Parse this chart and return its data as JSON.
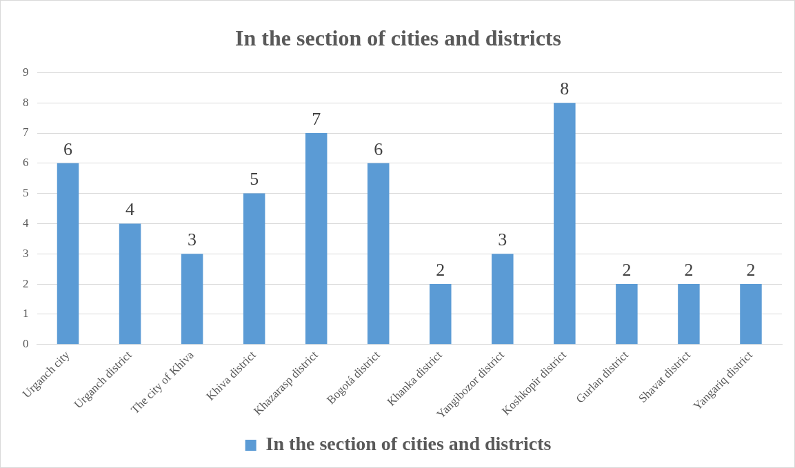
{
  "chart_data": {
    "type": "bar",
    "title": "In the section of cities and districts",
    "categories": [
      "Urganch city",
      "Urganch district",
      "The city of Khiva",
      "Khiva district",
      "Khazarasp district",
      "Bogotá district",
      "Khanka district",
      "Yangibozor district",
      "Koshkopir district",
      "Gurlan district",
      "Shavat district",
      "Yangariq district"
    ],
    "series": [
      {
        "name": "In the section of cities and districts",
        "color": "#5b9bd5",
        "values": [
          6,
          4,
          3,
          5,
          7,
          6,
          2,
          3,
          8,
          2,
          2,
          2
        ]
      }
    ],
    "ylim": [
      0,
      9
    ],
    "yticks": [
      0,
      1,
      2,
      3,
      4,
      5,
      6,
      7,
      8,
      9
    ],
    "grid": "y",
    "legend": "bottom",
    "data_labels": true
  }
}
